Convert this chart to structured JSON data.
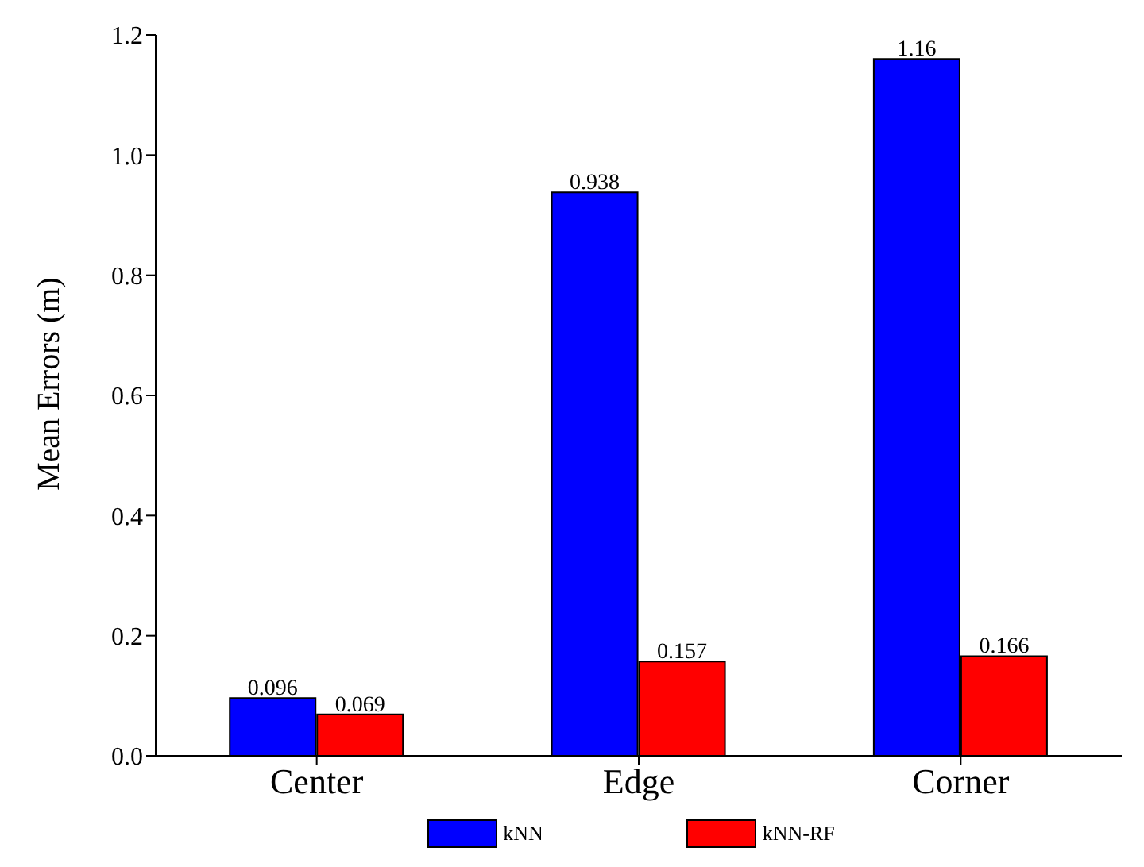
{
  "chart_data": {
    "type": "bar",
    "ylabel": "Mean Errors (m)",
    "categories": [
      "Center",
      "Edge",
      "Corner"
    ],
    "series": [
      {
        "name": "kNN",
        "color": "#0000ff",
        "values": [
          0.096,
          0.938,
          1.16
        ]
      },
      {
        "name": "kNN-RF",
        "color": "#ff0000",
        "values": [
          0.069,
          0.157,
          0.166
        ]
      }
    ],
    "ylim": [
      0,
      1.2
    ],
    "yticks": [
      {
        "value": 0,
        "label": "0.0"
      },
      {
        "value": 0.2,
        "label": "0.2"
      },
      {
        "value": 0.4,
        "label": "0.4"
      },
      {
        "value": 0.6,
        "label": "0.6"
      },
      {
        "value": 0.8,
        "label": "0.8"
      },
      {
        "value": 1,
        "label": "1.0"
      },
      {
        "value": 1.2,
        "label": "1.2"
      }
    ],
    "data_labels": true,
    "legend": "bottom",
    "grid": false
  }
}
